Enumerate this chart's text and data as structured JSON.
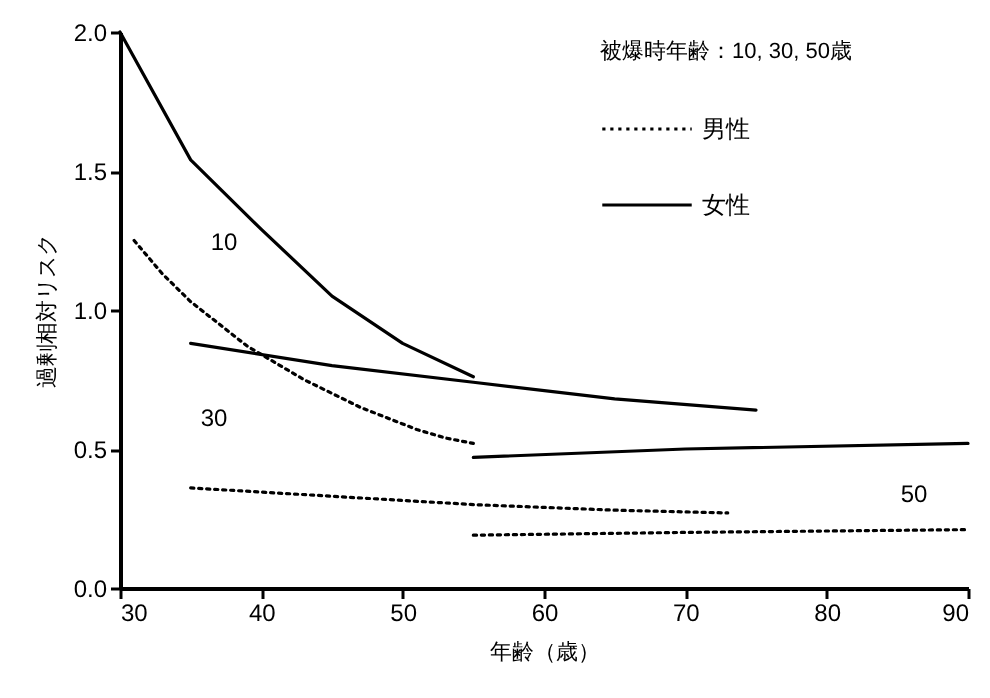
{
  "chart_data": {
    "type": "line",
    "xlabel": "年齢（歳）",
    "ylabel": "過剰相対リスク",
    "legend_title": "被爆時年齢：10,  30,  50歳",
    "legend": "top right",
    "grid": false,
    "marker": "none",
    "xlim": [
      30,
      90
    ],
    "xticks": [
      30,
      40,
      50,
      60,
      70,
      80,
      90
    ],
    "ylim": [
      0,
      2
    ],
    "yticks": [
      {
        "value": 0,
        "label": "0.0"
      },
      {
        "value": 0.5,
        "label": "0.5"
      },
      {
        "value": 1,
        "label": "1.0"
      },
      {
        "value": 1.5,
        "label": "1.5"
      },
      {
        "value": 2,
        "label": "2.0"
      }
    ],
    "series": [
      {
        "name": "男性",
        "color": "#000000",
        "line_style": "dotted",
        "x": [
          31,
          33,
          35,
          37,
          39,
          41,
          43,
          45,
          47,
          49,
          51,
          53,
          55
        ],
        "values": [
          1.25,
          1.13,
          1.03,
          0.95,
          0.87,
          0.81,
          0.75,
          0.7,
          0.65,
          0.61,
          0.57,
          0.54,
          0.52
        ]
      },
      {
        "name": "女性",
        "color": "#000000",
        "line_style": "solid",
        "x": [
          30,
          35,
          40,
          45,
          50,
          55
        ],
        "values": [
          2.0,
          1.54,
          1.29,
          1.05,
          0.88,
          0.76
        ]
      },
      {
        "color": "#000000",
        "line_style": "dotted",
        "x": [
          35,
          45,
          55,
          65,
          73
        ],
        "values": [
          0.36,
          0.33,
          0.3,
          0.28,
          0.27
        ]
      },
      {
        "color": "#000000",
        "line_style": "solid",
        "x": [
          35,
          45,
          55,
          65,
          75
        ],
        "values": [
          0.88,
          0.8,
          0.74,
          0.68,
          0.64
        ]
      },
      {
        "color": "#000000",
        "line_style": "dotted",
        "x": [
          55,
          70,
          90
        ],
        "values": [
          0.19,
          0.2,
          0.21
        ]
      },
      {
        "color": "#000000",
        "line_style": "solid",
        "x": [
          55,
          70,
          90
        ],
        "values": [
          0.47,
          0.5,
          0.52
        ]
      }
    ],
    "annotations": [
      "10",
      "30",
      "50"
    ]
  }
}
